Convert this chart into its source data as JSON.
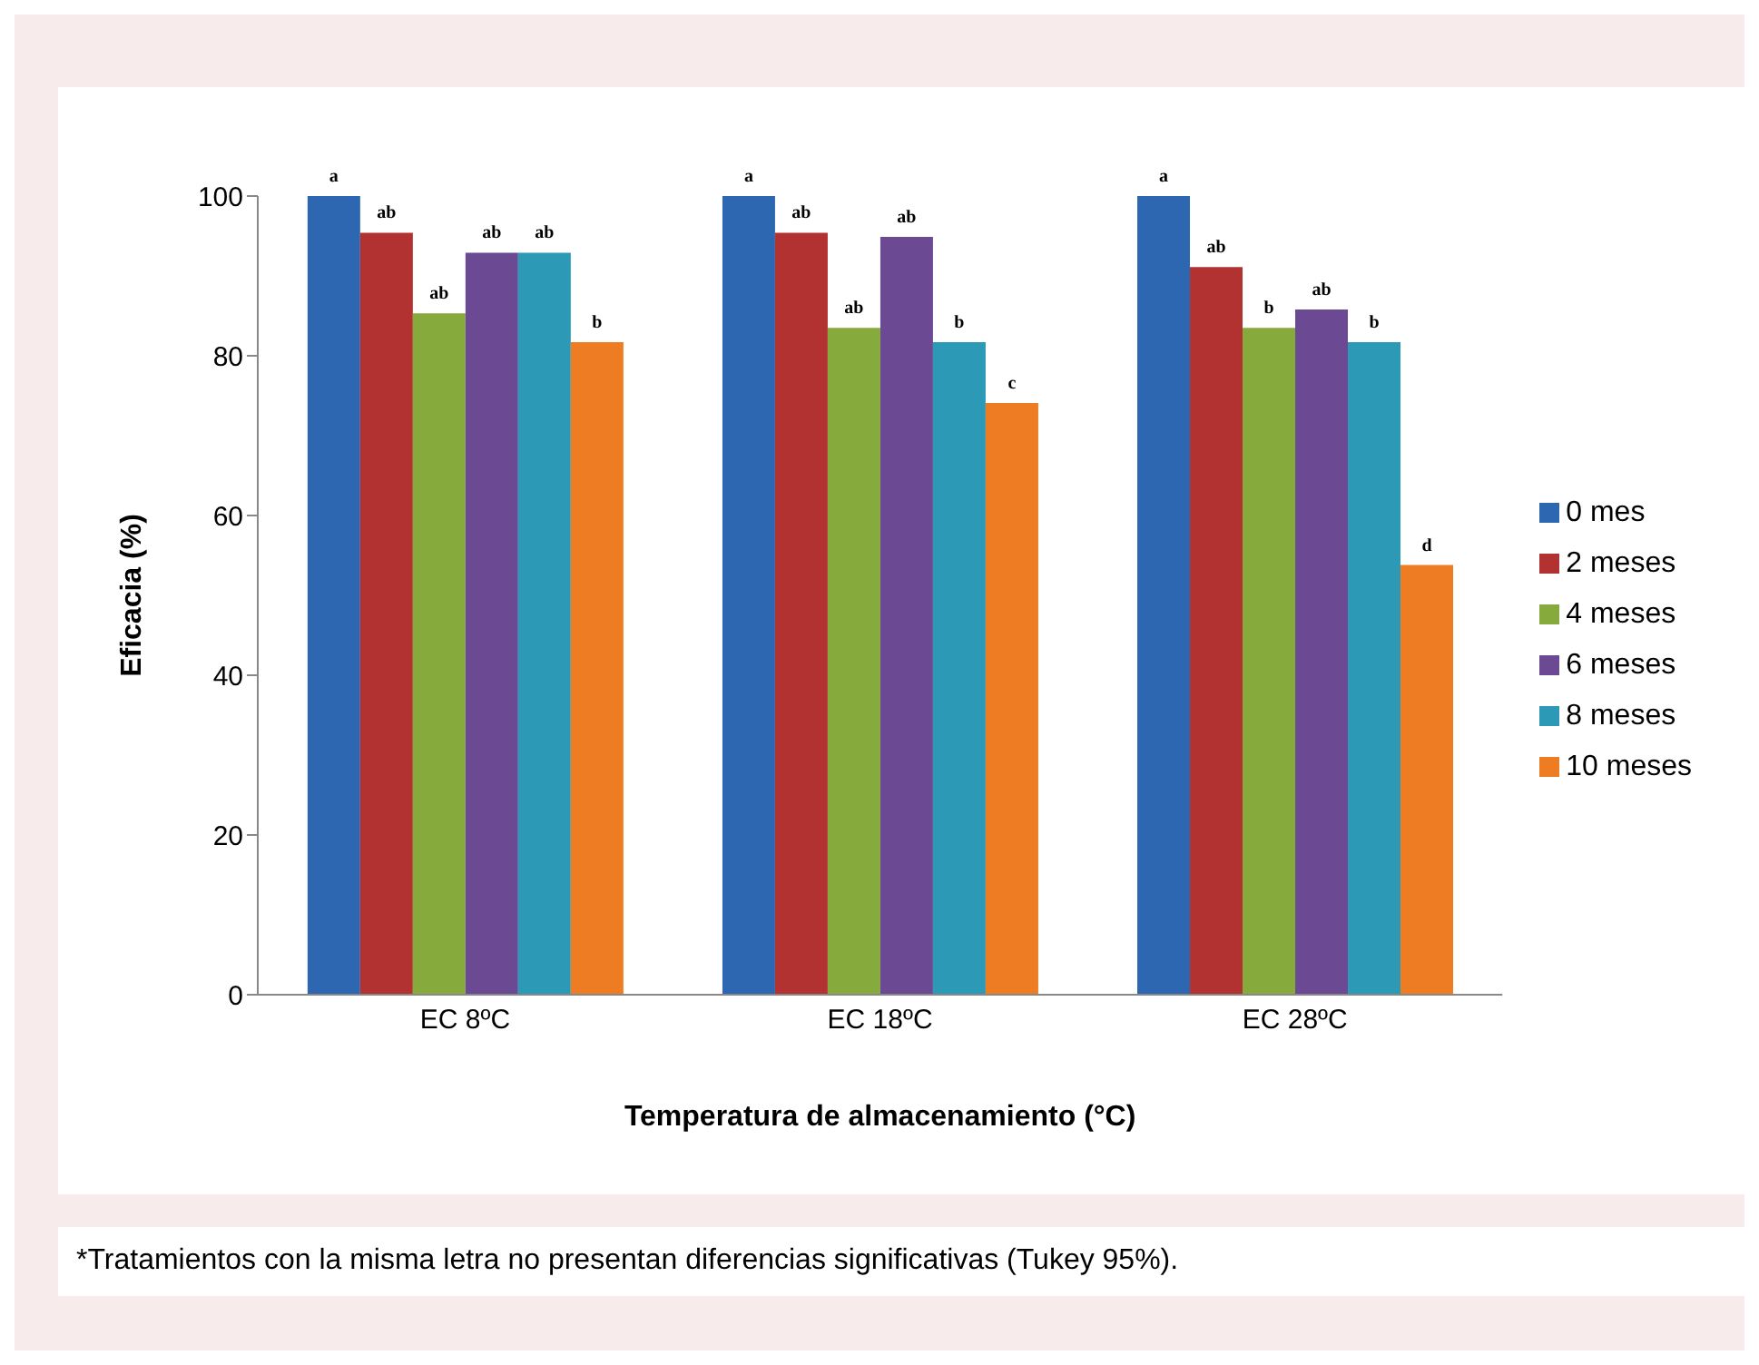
{
  "chart_data": {
    "type": "bar",
    "categories": [
      "EC 8ºC",
      "EC 18ºC",
      "EC 28ºC"
    ],
    "series": [
      {
        "name": "0 mes",
        "color": "#2e67b1",
        "values": [
          100,
          100,
          100
        ],
        "value_labels": [
          "a",
          "a",
          "a"
        ]
      },
      {
        "name": "2 meses",
        "color": "#b23232",
        "values": [
          95.4,
          95.4,
          91.1
        ],
        "value_labels": [
          "ab",
          "ab",
          "ab"
        ]
      },
      {
        "name": "4 meses",
        "color": "#86ab3c",
        "values": [
          85.3,
          83.5,
          83.5
        ],
        "value_labels": [
          "ab",
          "ab",
          "b"
        ]
      },
      {
        "name": "6 meses",
        "color": "#6b4a93",
        "values": [
          92.9,
          94.9,
          85.8
        ],
        "value_labels": [
          "ab",
          "ab",
          "ab"
        ]
      },
      {
        "name": "8 meses",
        "color": "#2c9ab7",
        "values": [
          92.9,
          81.7,
          81.7
        ],
        "value_labels": [
          "ab",
          "b",
          "b"
        ]
      },
      {
        "name": "10 meses",
        "color": "#ee7c22",
        "values": [
          81.7,
          74.1,
          53.8
        ],
        "value_labels": [
          "b",
          "c",
          "d"
        ]
      }
    ],
    "xlabel": "Temperatura de almacenamiento (°C)",
    "ylabel": "Eficacia (%)",
    "ylim": [
      0,
      100
    ],
    "yticks": [
      0,
      20,
      40,
      60,
      80,
      100
    ],
    "legend": "right",
    "annotations": [
      "*Tratamientos con la misma letra no presentan diferencias significativas (Tukey 95%)."
    ]
  }
}
